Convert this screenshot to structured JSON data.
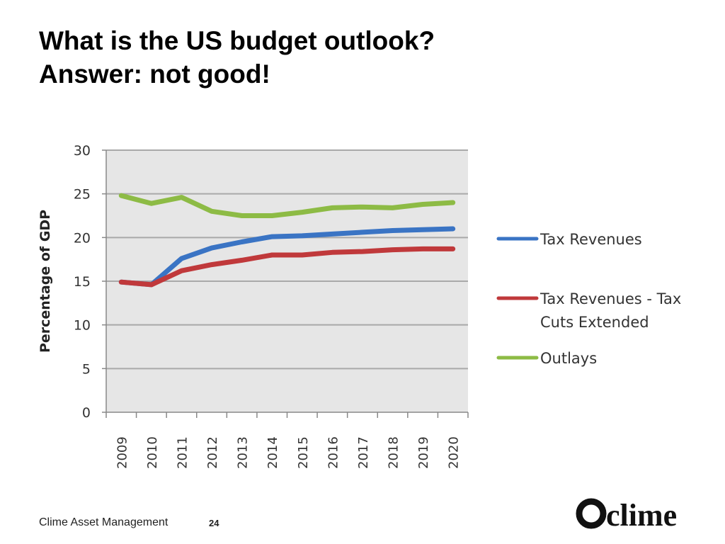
{
  "slide": {
    "title_line1": "What is the US budget outlook?",
    "title_line2": "Answer: not good!",
    "footer_company": "Clime Asset Management",
    "page_number": "24",
    "logo_text": "clime"
  },
  "chart_data": {
    "type": "line",
    "title": "",
    "xlabel": "",
    "ylabel": "Percentage of GDP",
    "ylim": [
      0,
      30
    ],
    "yticks": [
      0,
      5,
      10,
      15,
      20,
      25,
      30
    ],
    "grid": true,
    "legend_position": "right",
    "categories": [
      "2009",
      "2010",
      "2011",
      "2012",
      "2013",
      "2014",
      "2015",
      "2016",
      "2017",
      "2018",
      "2019",
      "2020"
    ],
    "series": [
      {
        "name": "Tax Revenues",
        "color": "#3a74c4",
        "values": [
          14.9,
          14.6,
          17.6,
          18.8,
          19.5,
          20.1,
          20.2,
          20.4,
          20.6,
          20.8,
          20.9,
          21.0
        ]
      },
      {
        "name": "Tax Revenues - Tax Cuts Extended",
        "color": "#c0393b",
        "values": [
          14.9,
          14.6,
          16.2,
          16.9,
          17.4,
          18.0,
          18.0,
          18.3,
          18.4,
          18.6,
          18.7,
          18.7
        ]
      },
      {
        "name": "Outlays",
        "color": "#8dbb45",
        "values": [
          24.8,
          23.9,
          24.6,
          23.0,
          22.5,
          22.5,
          22.9,
          23.4,
          23.5,
          23.4,
          23.8,
          24.0
        ]
      }
    ],
    "legend_labels": [
      [
        "Tax Revenues"
      ],
      [
        "Tax Revenues - Tax",
        "Cuts Extended"
      ],
      [
        "Outlays"
      ]
    ],
    "plot_background": "#e6e6e6",
    "grid_color": "#a9a9a9"
  }
}
